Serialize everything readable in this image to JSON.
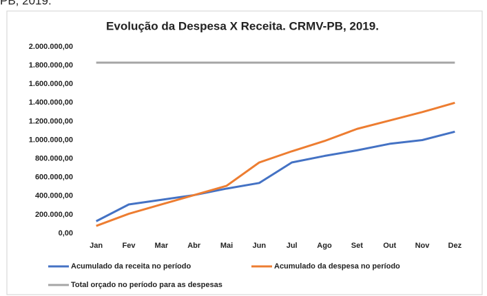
{
  "header_fragment": "PB, 2019.",
  "chart_data": {
    "type": "line",
    "title": "Evolução da Despesa X Receita. CRMV-PB, 2019.",
    "categories": [
      "Jan",
      "Fev",
      "Mar",
      "Abr",
      "Mai",
      "Jun",
      "Jul",
      "Ago",
      "Set",
      "Out",
      "Nov",
      "Dez"
    ],
    "series": [
      {
        "name": "Acumulado da receita no período",
        "color": "#4472c4",
        "values": [
          130000,
          310000,
          360000,
          410000,
          480000,
          540000,
          760000,
          830000,
          890000,
          960000,
          1000000,
          1090000
        ]
      },
      {
        "name": "Acumulado da despesa no período",
        "color": "#ed7d31",
        "values": [
          80000,
          210000,
          310000,
          410000,
          510000,
          760000,
          880000,
          990000,
          1120000,
          1210000,
          1300000,
          1400000
        ]
      },
      {
        "name": "Total orçado no período para as despesas",
        "color": "#a5a5a5",
        "values": [
          1830000,
          1830000,
          1830000,
          1830000,
          1830000,
          1830000,
          1830000,
          1830000,
          1830000,
          1830000,
          1830000,
          1830000
        ]
      }
    ],
    "ylim": [
      0,
      2000000
    ],
    "yticks": [
      {
        "value": 0,
        "label": "0,00"
      },
      {
        "value": 200000,
        "label": "200.000,00"
      },
      {
        "value": 400000,
        "label": "400.000,00"
      },
      {
        "value": 600000,
        "label": "600.000,00"
      },
      {
        "value": 800000,
        "label": "800.000,00"
      },
      {
        "value": 1000000,
        "label": "1.000.000,00"
      },
      {
        "value": 1200000,
        "label": "1.200.000,00"
      },
      {
        "value": 1400000,
        "label": "1.400.000,00"
      },
      {
        "value": 1600000,
        "label": "1.600.000,00"
      },
      {
        "value": 1800000,
        "label": "1.800.000,00"
      },
      {
        "value": 2000000,
        "label": "2.000.000,00"
      }
    ],
    "grid": false,
    "legend": "bottom"
  }
}
